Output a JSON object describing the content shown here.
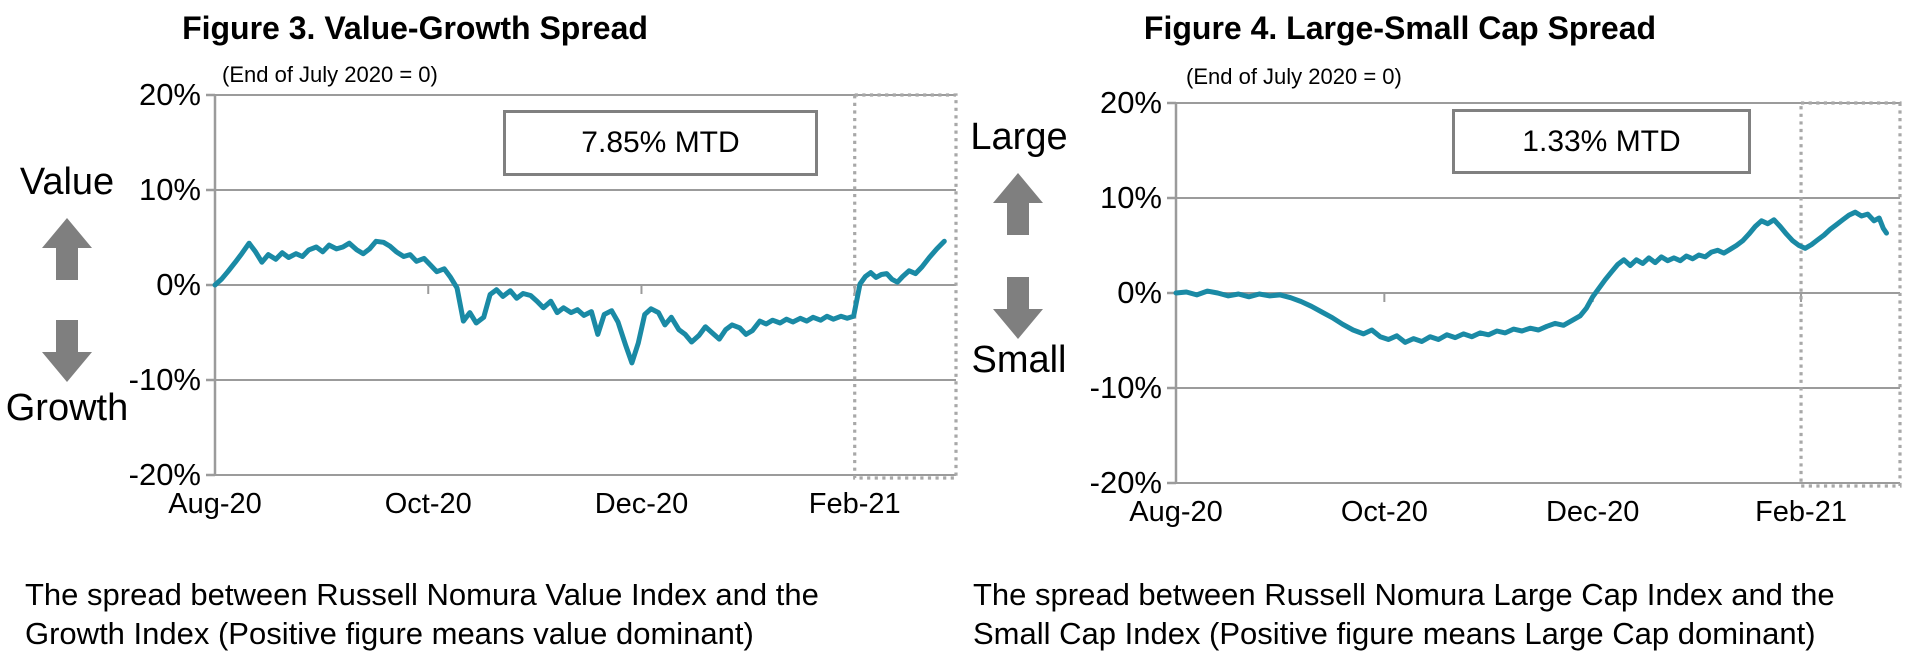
{
  "page": {
    "left_panel": {
      "top_label": "Value",
      "bottom_label": "Growth",
      "caption_line1": "The spread between Russell Nomura Value Index and the",
      "caption_line2": "Growth Index (Positive figure means value dominant)"
    },
    "right_panel": {
      "top_label": "Large",
      "bottom_label": "Small",
      "caption_line1": "The spread between Russell Nomura Large Cap Index and the",
      "caption_line2": "Small Cap Index (Positive figure means Large Cap dominant)"
    }
  },
  "colors": {
    "line": "#1a8aa5",
    "grid": "#9b9b9b",
    "highlight_box": "#a8a8a8",
    "arrow": "#7f7f7f",
    "annotation_border": "#808080",
    "text": "#000000"
  },
  "chart_data": [
    {
      "type": "line",
      "title": "Figure 3. Value-Growth Spread",
      "note": "(End of July 2020 = 0)",
      "annotation": "7.85% MTD",
      "x_unit": "months since end of July 2020 (0 = Jul 31 2020)",
      "y_unit": "percent",
      "xlim": [
        0,
        6.95
      ],
      "ylim": [
        -20,
        20
      ],
      "grid": true,
      "legend": "none",
      "yticks": [
        {
          "value": 20,
          "label": "20%"
        },
        {
          "value": 10,
          "label": "10%"
        },
        {
          "value": 0,
          "label": "0%"
        },
        {
          "value": -10,
          "label": "-10%"
        },
        {
          "value": -20,
          "label": "-20%"
        }
      ],
      "xticks": [
        {
          "m": 0,
          "label": "Aug-20"
        },
        {
          "m": 2,
          "label": "Oct-20"
        },
        {
          "m": 4,
          "label": "Dec-20"
        },
        {
          "m": 6,
          "label": "Feb-21"
        }
      ],
      "highlight_region": {
        "from_m": 6.0,
        "to_m": 6.95
      },
      "series": [
        {
          "name": "Value minus Growth spread (%)",
          "points": [
            [
              0,
              0
            ],
            [
              0.06,
              0.6
            ],
            [
              0.12,
              1.4
            ],
            [
              0.19,
              2.4
            ],
            [
              0.25,
              3.3
            ],
            [
              0.32,
              4.4
            ],
            [
              0.38,
              3.5
            ],
            [
              0.44,
              2.4
            ],
            [
              0.5,
              3.2
            ],
            [
              0.57,
              2.7
            ],
            [
              0.63,
              3.4
            ],
            [
              0.69,
              2.9
            ],
            [
              0.76,
              3.3
            ],
            [
              0.82,
              3.0
            ],
            [
              0.88,
              3.7
            ],
            [
              0.95,
              4.0
            ],
            [
              1.01,
              3.5
            ],
            [
              1.07,
              4.2
            ],
            [
              1.14,
              3.8
            ],
            [
              1.2,
              4.0
            ],
            [
              1.26,
              4.4
            ],
            [
              1.33,
              3.7
            ],
            [
              1.39,
              3.3
            ],
            [
              1.45,
              3.8
            ],
            [
              1.51,
              4.6
            ],
            [
              1.58,
              4.5
            ],
            [
              1.64,
              4.1
            ],
            [
              1.7,
              3.5
            ],
            [
              1.77,
              3.0
            ],
            [
              1.83,
              3.2
            ],
            [
              1.89,
              2.5
            ],
            [
              1.96,
              2.8
            ],
            [
              2.02,
              2.1
            ],
            [
              2.08,
              1.4
            ],
            [
              2.15,
              1.7
            ],
            [
              2.21,
              0.8
            ],
            [
              2.27,
              -0.3
            ],
            [
              2.33,
              -3.8
            ],
            [
              2.39,
              -2.9
            ],
            [
              2.45,
              -4.0
            ],
            [
              2.52,
              -3.4
            ],
            [
              2.58,
              -1.0
            ],
            [
              2.64,
              -0.5
            ],
            [
              2.7,
              -1.2
            ],
            [
              2.77,
              -0.6
            ],
            [
              2.83,
              -1.4
            ],
            [
              2.89,
              -0.9
            ],
            [
              2.96,
              -1.1
            ],
            [
              3.02,
              -1.7
            ],
            [
              3.08,
              -2.4
            ],
            [
              3.15,
              -1.7
            ],
            [
              3.21,
              -2.9
            ],
            [
              3.27,
              -2.4
            ],
            [
              3.34,
              -2.9
            ],
            [
              3.4,
              -2.6
            ],
            [
              3.46,
              -3.2
            ],
            [
              3.53,
              -2.8
            ],
            [
              3.59,
              -5.2
            ],
            [
              3.65,
              -3.1
            ],
            [
              3.72,
              -2.7
            ],
            [
              3.78,
              -3.9
            ],
            [
              3.85,
              -6.3
            ],
            [
              3.91,
              -8.2
            ],
            [
              3.97,
              -6.1
            ],
            [
              4.03,
              -3.1
            ],
            [
              4.09,
              -2.5
            ],
            [
              4.16,
              -2.9
            ],
            [
              4.22,
              -4.2
            ],
            [
              4.28,
              -3.4
            ],
            [
              4.35,
              -4.7
            ],
            [
              4.41,
              -5.2
            ],
            [
              4.47,
              -6.0
            ],
            [
              4.54,
              -5.3
            ],
            [
              4.6,
              -4.4
            ],
            [
              4.66,
              -5.0
            ],
            [
              4.73,
              -5.7
            ],
            [
              4.79,
              -4.7
            ],
            [
              4.85,
              -4.2
            ],
            [
              4.92,
              -4.5
            ],
            [
              4.98,
              -5.2
            ],
            [
              5.04,
              -4.8
            ],
            [
              5.11,
              -3.8
            ],
            [
              5.17,
              -4.1
            ],
            [
              5.23,
              -3.7
            ],
            [
              5.3,
              -4.0
            ],
            [
              5.36,
              -3.6
            ],
            [
              5.42,
              -3.9
            ],
            [
              5.49,
              -3.5
            ],
            [
              5.55,
              -3.8
            ],
            [
              5.61,
              -3.4
            ],
            [
              5.68,
              -3.7
            ],
            [
              5.74,
              -3.3
            ],
            [
              5.8,
              -3.6
            ],
            [
              5.87,
              -3.3
            ],
            [
              5.93,
              -3.5
            ],
            [
              5.99,
              -3.3
            ],
            [
              6.05,
              0.1
            ],
            [
              6.1,
              0.9
            ],
            [
              6.15,
              1.3
            ],
            [
              6.2,
              0.8
            ],
            [
              6.25,
              1.1
            ],
            [
              6.3,
              1.2
            ],
            [
              6.35,
              0.6
            ],
            [
              6.4,
              0.3
            ],
            [
              6.45,
              0.9
            ],
            [
              6.51,
              1.5
            ],
            [
              6.57,
              1.2
            ],
            [
              6.63,
              1.9
            ],
            [
              6.7,
              2.9
            ],
            [
              6.77,
              3.8
            ],
            [
              6.84,
              4.6
            ]
          ]
        }
      ]
    },
    {
      "type": "line",
      "title": "Figure 4. Large-Small Cap Spread",
      "note": "(End of July 2020 = 0)",
      "annotation": "1.33% MTD",
      "x_unit": "months since end of July 2020 (0 = Jul 31 2020)",
      "y_unit": "percent",
      "xlim": [
        0,
        6.95
      ],
      "ylim": [
        -20,
        20
      ],
      "grid": true,
      "legend": "none",
      "yticks": [
        {
          "value": 20,
          "label": "20%"
        },
        {
          "value": 10,
          "label": "10%"
        },
        {
          "value": 0,
          "label": "0%"
        },
        {
          "value": -10,
          "label": "-10%"
        },
        {
          "value": -20,
          "label": "-20%"
        }
      ],
      "xticks": [
        {
          "m": 0,
          "label": "Aug-20"
        },
        {
          "m": 2,
          "label": "Oct-20"
        },
        {
          "m": 4,
          "label": "Dec-20"
        },
        {
          "m": 6,
          "label": "Feb-21"
        }
      ],
      "highlight_region": {
        "from_m": 6.0,
        "to_m": 6.95
      },
      "series": [
        {
          "name": "Large Cap minus Small Cap spread (%)",
          "points": [
            [
              0,
              0
            ],
            [
              0.1,
              0.1
            ],
            [
              0.2,
              -0.2
            ],
            [
              0.3,
              0.2
            ],
            [
              0.4,
              0
            ],
            [
              0.5,
              -0.3
            ],
            [
              0.6,
              -0.1
            ],
            [
              0.7,
              -0.4
            ],
            [
              0.8,
              -0.1
            ],
            [
              0.9,
              -0.3
            ],
            [
              1.0,
              -0.2
            ],
            [
              1.1,
              -0.5
            ],
            [
              1.2,
              -0.9
            ],
            [
              1.3,
              -1.4
            ],
            [
              1.4,
              -2.0
            ],
            [
              1.5,
              -2.6
            ],
            [
              1.6,
              -3.3
            ],
            [
              1.7,
              -3.9
            ],
            [
              1.8,
              -4.3
            ],
            [
              1.88,
              -3.9
            ],
            [
              1.96,
              -4.6
            ],
            [
              2.04,
              -4.9
            ],
            [
              2.12,
              -4.5
            ],
            [
              2.2,
              -5.2
            ],
            [
              2.28,
              -4.8
            ],
            [
              2.36,
              -5.1
            ],
            [
              2.44,
              -4.6
            ],
            [
              2.52,
              -4.9
            ],
            [
              2.6,
              -4.4
            ],
            [
              2.68,
              -4.7
            ],
            [
              2.76,
              -4.3
            ],
            [
              2.84,
              -4.6
            ],
            [
              2.92,
              -4.2
            ],
            [
              3.0,
              -4.4
            ],
            [
              3.08,
              -4.0
            ],
            [
              3.16,
              -4.2
            ],
            [
              3.24,
              -3.8
            ],
            [
              3.32,
              -4.0
            ],
            [
              3.4,
              -3.7
            ],
            [
              3.48,
              -3.9
            ],
            [
              3.56,
              -3.5
            ],
            [
              3.64,
              -3.2
            ],
            [
              3.72,
              -3.4
            ],
            [
              3.8,
              -2.9
            ],
            [
              3.88,
              -2.4
            ],
            [
              3.94,
              -1.6
            ],
            [
              4.0,
              -0.4
            ],
            [
              4.06,
              0.5
            ],
            [
              4.12,
              1.4
            ],
            [
              4.18,
              2.2
            ],
            [
              4.24,
              3.0
            ],
            [
              4.3,
              3.5
            ],
            [
              4.36,
              2.9
            ],
            [
              4.42,
              3.5
            ],
            [
              4.48,
              3.1
            ],
            [
              4.54,
              3.7
            ],
            [
              4.6,
              3.2
            ],
            [
              4.66,
              3.8
            ],
            [
              4.72,
              3.4
            ],
            [
              4.78,
              3.7
            ],
            [
              4.84,
              3.4
            ],
            [
              4.9,
              3.9
            ],
            [
              4.96,
              3.6
            ],
            [
              5.02,
              4.0
            ],
            [
              5.08,
              3.8
            ],
            [
              5.14,
              4.3
            ],
            [
              5.2,
              4.5
            ],
            [
              5.26,
              4.2
            ],
            [
              5.32,
              4.6
            ],
            [
              5.38,
              5.0
            ],
            [
              5.44,
              5.5
            ],
            [
              5.5,
              6.2
            ],
            [
              5.56,
              7.0
            ],
            [
              5.62,
              7.6
            ],
            [
              5.68,
              7.3
            ],
            [
              5.74,
              7.7
            ],
            [
              5.8,
              7.0
            ],
            [
              5.86,
              6.2
            ],
            [
              5.92,
              5.5
            ],
            [
              5.98,
              5.0
            ],
            [
              6.04,
              4.7
            ],
            [
              6.1,
              5.1
            ],
            [
              6.16,
              5.6
            ],
            [
              6.22,
              6.1
            ],
            [
              6.28,
              6.7
            ],
            [
              6.34,
              7.2
            ],
            [
              6.4,
              7.7
            ],
            [
              6.46,
              8.2
            ],
            [
              6.52,
              8.5
            ],
            [
              6.58,
              8.1
            ],
            [
              6.64,
              8.3
            ],
            [
              6.7,
              7.6
            ],
            [
              6.75,
              7.9
            ],
            [
              6.79,
              6.8
            ],
            [
              6.82,
              6.3
            ]
          ]
        }
      ]
    }
  ]
}
